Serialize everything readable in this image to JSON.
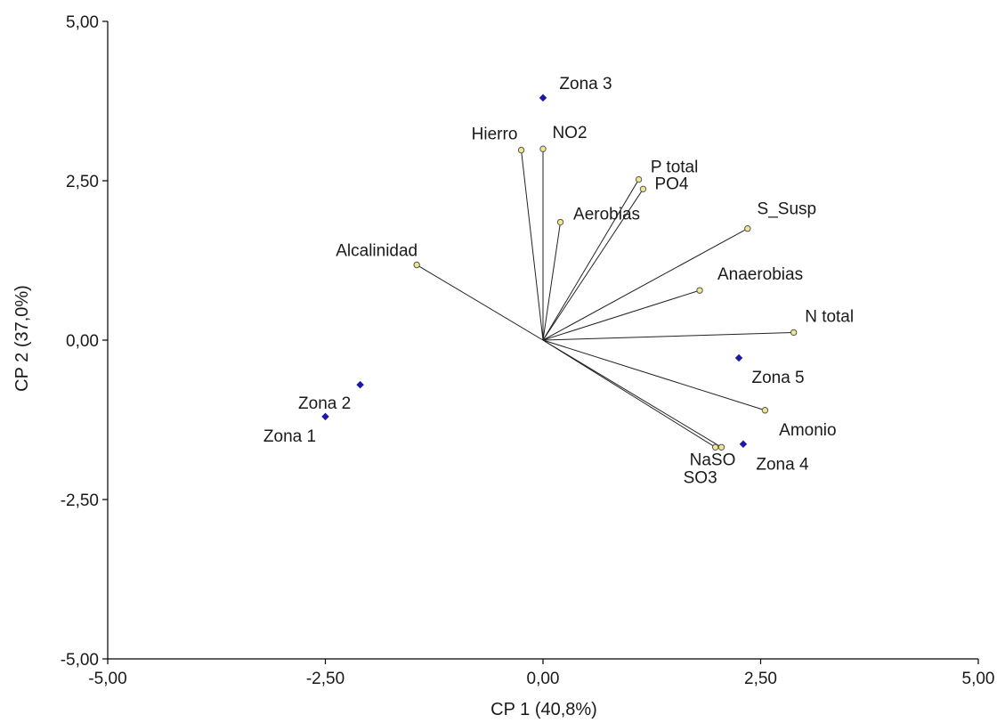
{
  "chart_data": {
    "type": "scatter",
    "subtype": "biplot",
    "title": "",
    "xlabel": "CP 1 (40,8%)",
    "ylabel": "CP 2 (37,0%)",
    "xlim": [
      -5,
      5
    ],
    "ylim": [
      -5,
      5
    ],
    "xticks": [
      -5,
      -2.5,
      0,
      2.5,
      5
    ],
    "yticks": [
      -5,
      -2.5,
      0,
      2.5,
      5
    ],
    "xtick_labels": [
      "-5,00",
      "-2,50",
      "0,00",
      "2,50",
      "5,00"
    ],
    "ytick_labels": [
      "-5,00",
      "-2,50",
      "0,00",
      "2,50",
      "5,00"
    ],
    "grid": false,
    "observations": {
      "marker_color": "#1a1aa6",
      "points": [
        {
          "label": "Zona 3",
          "x": 0.0,
          "y": 3.8
        },
        {
          "label": "Zona 2",
          "x": -2.1,
          "y": -0.7
        },
        {
          "label": "Zona 1",
          "x": -2.5,
          "y": -1.2
        },
        {
          "label": "Zona 5",
          "x": 2.25,
          "y": -0.28
        },
        {
          "label": "Zona 4",
          "x": 2.3,
          "y": -1.63
        }
      ]
    },
    "variables": {
      "marker_color": "#f0e68c",
      "vectors": [
        {
          "label": "Hierro",
          "x": -0.25,
          "y": 2.98
        },
        {
          "label": "NO2",
          "x": 0.0,
          "y": 3.0
        },
        {
          "label": "P total",
          "x": 1.1,
          "y": 2.52
        },
        {
          "label": "PO4",
          "x": 1.15,
          "y": 2.37
        },
        {
          "label": "Aerobias",
          "x": 0.2,
          "y": 1.85
        },
        {
          "label": "S_Susp",
          "x": 2.35,
          "y": 1.75
        },
        {
          "label": "Alcalinidad",
          "x": -1.45,
          "y": 1.18
        },
        {
          "label": "Anaerobias",
          "x": 1.8,
          "y": 0.78
        },
        {
          "label": "N total",
          "x": 2.88,
          "y": 0.12
        },
        {
          "label": "Amonio",
          "x": 2.55,
          "y": -1.1
        },
        {
          "label": "NaSO",
          "x": 2.05,
          "y": -1.68
        },
        {
          "label": "SO3",
          "x": 1.98,
          "y": -1.68
        }
      ]
    }
  }
}
